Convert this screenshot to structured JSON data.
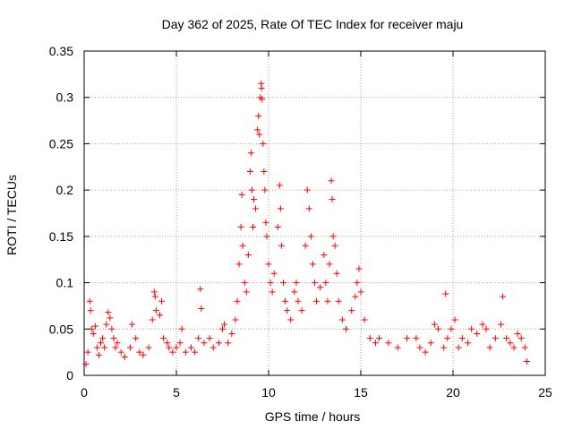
{
  "chart_data": {
    "type": "scatter",
    "title": "Day 362 of 2025, Rate Of TEC Index for receiver maju",
    "xlabel": "GPS time / hours",
    "ylabel": "ROTI / TECUs",
    "xlim": [
      0,
      25
    ],
    "ylim": [
      0,
      0.35
    ],
    "xticks": [
      0,
      5,
      10,
      15,
      20,
      25
    ],
    "yticks": [
      0,
      0.05,
      0.1,
      0.15,
      0.2,
      0.25,
      0.3,
      0.35
    ],
    "xtick_labels": [
      "0",
      "5",
      "10",
      "15",
      "20",
      "25"
    ],
    "ytick_labels": [
      "0",
      "0.05",
      "0.1",
      "0.15",
      "0.2",
      "0.25",
      "0.3",
      "0.35"
    ],
    "grid": true,
    "marker": "plus",
    "color": "#ff0000",
    "series": [
      {
        "points": [
          [
            0.1,
            0.012
          ],
          [
            0.2,
            0.025
          ],
          [
            0.3,
            0.08
          ],
          [
            0.35,
            0.07
          ],
          [
            0.4,
            0.05
          ],
          [
            0.5,
            0.045
          ],
          [
            0.6,
            0.053
          ],
          [
            0.7,
            0.03
          ],
          [
            0.8,
            0.022
          ],
          [
            0.9,
            0.035
          ],
          [
            1.0,
            0.04
          ],
          [
            1.1,
            0.03
          ],
          [
            1.2,
            0.055
          ],
          [
            1.3,
            0.068
          ],
          [
            1.4,
            0.062
          ],
          [
            1.5,
            0.05
          ],
          [
            1.6,
            0.04
          ],
          [
            1.7,
            0.03
          ],
          [
            1.8,
            0.035
          ],
          [
            2.0,
            0.025
          ],
          [
            2.2,
            0.02
          ],
          [
            2.5,
            0.03
          ],
          [
            2.6,
            0.055
          ],
          [
            2.8,
            0.04
          ],
          [
            3.0,
            0.025
          ],
          [
            3.2,
            0.022
          ],
          [
            3.5,
            0.03
          ],
          [
            3.7,
            0.06
          ],
          [
            3.8,
            0.09
          ],
          [
            3.85,
            0.085
          ],
          [
            3.9,
            0.07
          ],
          [
            4.1,
            0.065
          ],
          [
            4.2,
            0.08
          ],
          [
            4.3,
            0.04
          ],
          [
            4.5,
            0.035
          ],
          [
            4.6,
            0.03
          ],
          [
            4.8,
            0.025
          ],
          [
            5.0,
            0.03
          ],
          [
            5.2,
            0.035
          ],
          [
            5.3,
            0.05
          ],
          [
            5.5,
            0.025
          ],
          [
            5.8,
            0.03
          ],
          [
            6.0,
            0.025
          ],
          [
            6.2,
            0.04
          ],
          [
            6.3,
            0.093
          ],
          [
            6.35,
            0.072
          ],
          [
            6.5,
            0.035
          ],
          [
            6.8,
            0.04
          ],
          [
            7.0,
            0.03
          ],
          [
            7.3,
            0.035
          ],
          [
            7.5,
            0.05
          ],
          [
            7.6,
            0.055
          ],
          [
            7.8,
            0.035
          ],
          [
            8.0,
            0.045
          ],
          [
            8.2,
            0.06
          ],
          [
            8.3,
            0.08
          ],
          [
            8.4,
            0.12
          ],
          [
            8.5,
            0.16
          ],
          [
            8.55,
            0.195
          ],
          [
            8.6,
            0.14
          ],
          [
            8.7,
            0.1
          ],
          [
            8.8,
            0.09
          ],
          [
            8.9,
            0.13
          ],
          [
            9.0,
            0.22
          ],
          [
            9.05,
            0.24
          ],
          [
            9.1,
            0.2
          ],
          [
            9.15,
            0.16
          ],
          [
            9.2,
            0.19
          ],
          [
            9.3,
            0.18
          ],
          [
            9.4,
            0.265
          ],
          [
            9.45,
            0.28
          ],
          [
            9.5,
            0.26
          ],
          [
            9.55,
            0.3
          ],
          [
            9.6,
            0.315
          ],
          [
            9.62,
            0.31
          ],
          [
            9.65,
            0.298
          ],
          [
            9.7,
            0.25
          ],
          [
            9.75,
            0.22
          ],
          [
            9.8,
            0.2
          ],
          [
            9.85,
            0.165
          ],
          [
            9.9,
            0.15
          ],
          [
            10.0,
            0.12
          ],
          [
            10.1,
            0.1
          ],
          [
            10.2,
            0.09
          ],
          [
            10.3,
            0.11
          ],
          [
            10.5,
            0.16
          ],
          [
            10.6,
            0.205
          ],
          [
            10.65,
            0.18
          ],
          [
            10.7,
            0.14
          ],
          [
            10.8,
            0.1
          ],
          [
            10.9,
            0.08
          ],
          [
            11.0,
            0.07
          ],
          [
            11.2,
            0.06
          ],
          [
            11.4,
            0.09
          ],
          [
            11.5,
            0.1
          ],
          [
            11.6,
            0.08
          ],
          [
            11.8,
            0.07
          ],
          [
            12.0,
            0.14
          ],
          [
            12.1,
            0.2
          ],
          [
            12.2,
            0.18
          ],
          [
            12.3,
            0.15
          ],
          [
            12.4,
            0.12
          ],
          [
            12.5,
            0.1
          ],
          [
            12.6,
            0.08
          ],
          [
            12.8,
            0.095
          ],
          [
            13.0,
            0.13
          ],
          [
            13.1,
            0.1
          ],
          [
            13.2,
            0.08
          ],
          [
            13.3,
            0.12
          ],
          [
            13.4,
            0.21
          ],
          [
            13.45,
            0.19
          ],
          [
            13.5,
            0.15
          ],
          [
            13.6,
            0.14
          ],
          [
            13.7,
            0.11
          ],
          [
            13.8,
            0.08
          ],
          [
            14.0,
            0.06
          ],
          [
            14.2,
            0.05
          ],
          [
            14.5,
            0.07
          ],
          [
            14.7,
            0.085
          ],
          [
            14.8,
            0.1
          ],
          [
            14.9,
            0.115
          ],
          [
            15.0,
            0.09
          ],
          [
            15.2,
            0.06
          ],
          [
            15.5,
            0.04
          ],
          [
            15.8,
            0.035
          ],
          [
            16.0,
            0.04
          ],
          [
            16.5,
            0.035
          ],
          [
            17.0,
            0.03
          ],
          [
            17.5,
            0.04
          ],
          [
            18.0,
            0.04
          ],
          [
            18.2,
            0.03
          ],
          [
            18.5,
            0.025
          ],
          [
            18.8,
            0.035
          ],
          [
            19.0,
            0.055
          ],
          [
            19.2,
            0.05
          ],
          [
            19.5,
            0.03
          ],
          [
            19.6,
            0.088
          ],
          [
            19.7,
            0.04
          ],
          [
            19.9,
            0.05
          ],
          [
            20.1,
            0.06
          ],
          [
            20.3,
            0.03
          ],
          [
            20.5,
            0.04
          ],
          [
            20.8,
            0.035
          ],
          [
            21.0,
            0.05
          ],
          [
            21.3,
            0.045
          ],
          [
            21.6,
            0.055
          ],
          [
            21.8,
            0.05
          ],
          [
            22.0,
            0.03
          ],
          [
            22.3,
            0.04
          ],
          [
            22.6,
            0.055
          ],
          [
            22.7,
            0.085
          ],
          [
            22.9,
            0.04
          ],
          [
            23.1,
            0.035
          ],
          [
            23.3,
            0.03
          ],
          [
            23.5,
            0.045
          ],
          [
            23.7,
            0.04
          ],
          [
            23.9,
            0.03
          ],
          [
            24.0,
            0.015
          ]
        ]
      }
    ]
  }
}
